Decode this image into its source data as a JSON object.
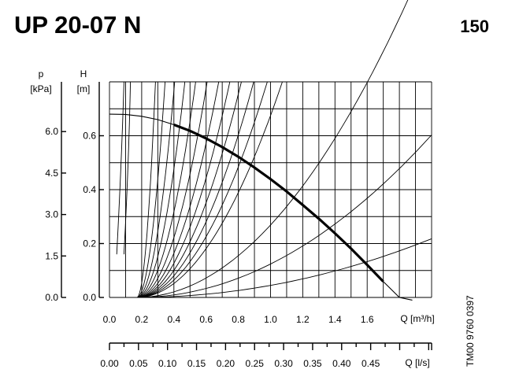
{
  "header": {
    "title": "UP 20-07 N",
    "code": "150"
  },
  "side_label": "TM00 9760 0397",
  "chart_data": {
    "type": "line",
    "title": "UP 20-07 N",
    "x": {
      "label": "Q [m³/h]",
      "range": [
        0,
        2.0
      ],
      "ticks": [
        0.0,
        0.2,
        0.4,
        0.6,
        0.8,
        1.0,
        1.2,
        1.4,
        1.6
      ],
      "tick_labels": [
        "0.0",
        "0.2",
        "0.4",
        "0.6",
        "0.8",
        "1.0",
        "1.2",
        "1.4",
        "1.6"
      ]
    },
    "x2": {
      "label": "Q [l/s]",
      "range": [
        0,
        0.555
      ],
      "ticks": [
        0.0,
        0.05,
        0.1,
        0.15,
        0.2,
        0.25,
        0.3,
        0.35,
        0.4,
        0.45
      ],
      "tick_labels": [
        "0.00",
        "0.05",
        "0.10",
        "0.15",
        "0.20",
        "0.25",
        "0.30",
        "0.35",
        "0.40",
        "0.45"
      ]
    },
    "y": {
      "label_symbol": "H",
      "label_unit": "[m]",
      "range": [
        0,
        0.8
      ],
      "ticks": [
        0.0,
        0.2,
        0.4,
        0.6
      ],
      "tick_labels": [
        "0.0",
        "0.2",
        "0.4",
        "0.6"
      ]
    },
    "y2": {
      "label_symbol": "p",
      "label_unit": "[kPa]",
      "range": [
        0,
        7.8
      ],
      "ticks": [
        0.0,
        1.5,
        3.0,
        4.5,
        6.0
      ],
      "tick_labels": [
        "0.0",
        "1.5",
        "3.0",
        "4.5",
        "6.0"
      ]
    },
    "grid": true,
    "pump_curve": {
      "x": [
        0.0,
        0.1,
        0.2,
        0.3,
        0.4,
        0.5,
        0.6,
        0.7,
        0.8,
        0.9,
        1.0,
        1.1,
        1.2,
        1.3,
        1.4,
        1.5,
        1.6,
        1.7,
        1.8,
        1.88
      ],
      "y": [
        0.68,
        0.679,
        0.672,
        0.66,
        0.641,
        0.618,
        0.59,
        0.558,
        0.522,
        0.482,
        0.439,
        0.393,
        0.343,
        0.292,
        0.238,
        0.181,
        0.121,
        0.059,
        0.0,
        -0.01
      ],
      "bold_range": [
        0.4,
        1.7
      ]
    },
    "system_curves": {
      "origin_x": 0.17,
      "end_h": 0.8,
      "k": [
        60,
        26,
        14.5,
        9,
        6,
        4.2,
        3.1,
        2.4,
        1.9,
        1.52,
        1.22,
        0.98
      ],
      "low_curves": [
        {
          "k": 0.39,
          "x_end": 2.0
        },
        {
          "k": 0.18,
          "x_end": 2.0
        },
        {
          "k": 0.065,
          "x_end": 2.0
        }
      ]
    }
  }
}
